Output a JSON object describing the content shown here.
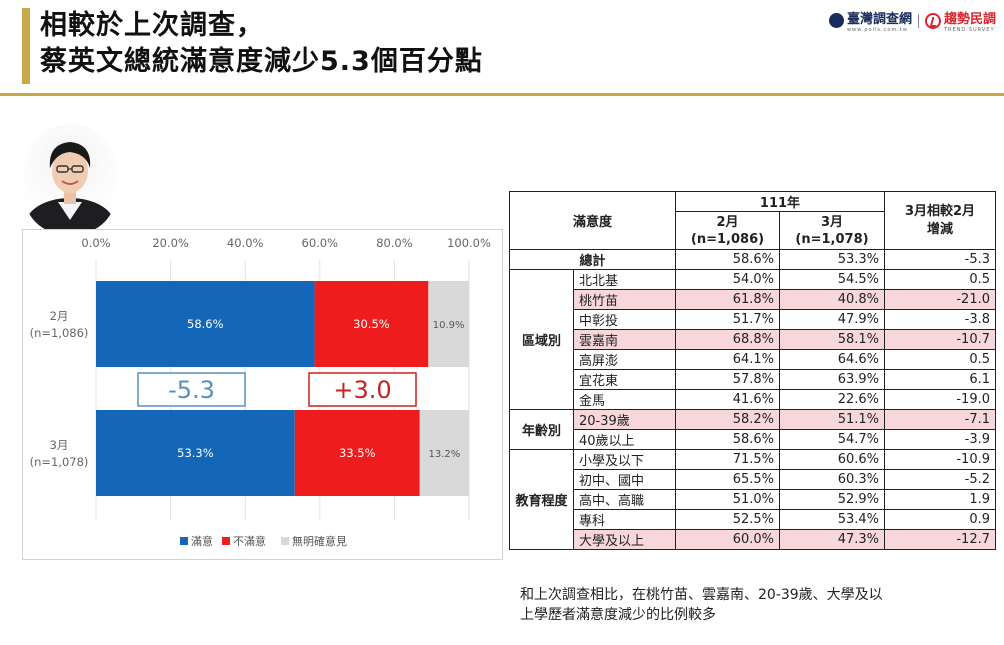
{
  "header": {
    "title_line1": "相較於上次調查，",
    "title_line2": "蔡英文總統滿意度減少5.3個百分點",
    "logo1_name": "臺灣調查網",
    "logo1_sub": "www.polls.com.tw",
    "logo2_name": "趨勢民調",
    "logo2_sub": "TREND SURVEY"
  },
  "chart_data": {
    "type": "bar",
    "orientation": "horizontal",
    "stacked": true,
    "categories": [
      {
        "line1": "2月",
        "line2": "(n=1,086)"
      },
      {
        "line1": "3月",
        "line2": "(n=1,078)"
      }
    ],
    "series": [
      {
        "name": "滿意",
        "values": [
          58.6,
          53.3
        ],
        "color": "#1366b8",
        "labels": [
          "58.6%",
          "53.3%"
        ]
      },
      {
        "name": "不滿意",
        "values": [
          30.5,
          33.5
        ],
        "color": "#ee1c1c",
        "labels": [
          "30.5%",
          "33.5%"
        ]
      },
      {
        "name": "無明確意見",
        "values": [
          10.9,
          13.2
        ],
        "color": "#d9d9d9",
        "labels": [
          "10.9%",
          "13.2%"
        ]
      }
    ],
    "xlim": [
      0,
      100
    ],
    "x_ticks": [
      "0.0%",
      "20.0%",
      "40.0%",
      "60.0%",
      "80.0%",
      "100.0%"
    ],
    "grid": true,
    "legend": "bottom",
    "annotations": [
      {
        "text": "-5.3",
        "color": "#5b8fbf"
      },
      {
        "text": "+3.0",
        "color": "#c92020"
      }
    ]
  },
  "table": {
    "col_group": "滿意度",
    "year_header": "111年",
    "col_feb": "2月",
    "col_feb_n": "(n=1,086)",
    "col_mar": "3月",
    "col_mar_n": "(n=1,078)",
    "col_change_line1": "3月相較2月",
    "col_change_line2": "增減",
    "total": {
      "label": "總計",
      "feb": "58.6%",
      "mar": "53.3%",
      "diff": "-5.3"
    },
    "groups": [
      {
        "name": "區域別",
        "rows": [
          {
            "label": "北北基",
            "feb": "54.0%",
            "mar": "54.5%",
            "diff": "0.5",
            "hl": false
          },
          {
            "label": "桃竹苗",
            "feb": "61.8%",
            "mar": "40.8%",
            "diff": "-21.0",
            "hl": true
          },
          {
            "label": "中彰投",
            "feb": "51.7%",
            "mar": "47.9%",
            "diff": "-3.8",
            "hl": false
          },
          {
            "label": "雲嘉南",
            "feb": "68.8%",
            "mar": "58.1%",
            "diff": "-10.7",
            "hl": true
          },
          {
            "label": "高屏澎",
            "feb": "64.1%",
            "mar": "64.6%",
            "diff": "0.5",
            "hl": false
          },
          {
            "label": "宜花東",
            "feb": "57.8%",
            "mar": "63.9%",
            "diff": "6.1",
            "hl": false
          },
          {
            "label": "金馬",
            "feb": "41.6%",
            "mar": "22.6%",
            "diff": "-19.0",
            "hl": false
          }
        ]
      },
      {
        "name": "年齡別",
        "rows": [
          {
            "label": "20-39歲",
            "feb": "58.2%",
            "mar": "51.1%",
            "diff": "-7.1",
            "hl": true
          },
          {
            "label": "40歲以上",
            "feb": "58.6%",
            "mar": "54.7%",
            "diff": "-3.9",
            "hl": false
          }
        ]
      },
      {
        "name": "教育程度",
        "rows": [
          {
            "label": "小學及以下",
            "feb": "71.5%",
            "mar": "60.6%",
            "diff": "-10.9",
            "hl": false
          },
          {
            "label": "初中、國中",
            "feb": "65.5%",
            "mar": "60.3%",
            "diff": "-5.2",
            "hl": false
          },
          {
            "label": "高中、高職",
            "feb": "51.0%",
            "mar": "52.9%",
            "diff": "1.9",
            "hl": false
          },
          {
            "label": "專科",
            "feb": "52.5%",
            "mar": "53.4%",
            "diff": "0.9",
            "hl": false
          },
          {
            "label": "大學及以上",
            "feb": "60.0%",
            "mar": "47.3%",
            "diff": "-12.7",
            "hl": true
          }
        ]
      }
    ]
  },
  "note": {
    "line1": "和上次調查相比，在桃竹苗、雲嘉南、20-39歲、大學及以",
    "line2": "上學歷者滿意度減少的比例較多"
  }
}
